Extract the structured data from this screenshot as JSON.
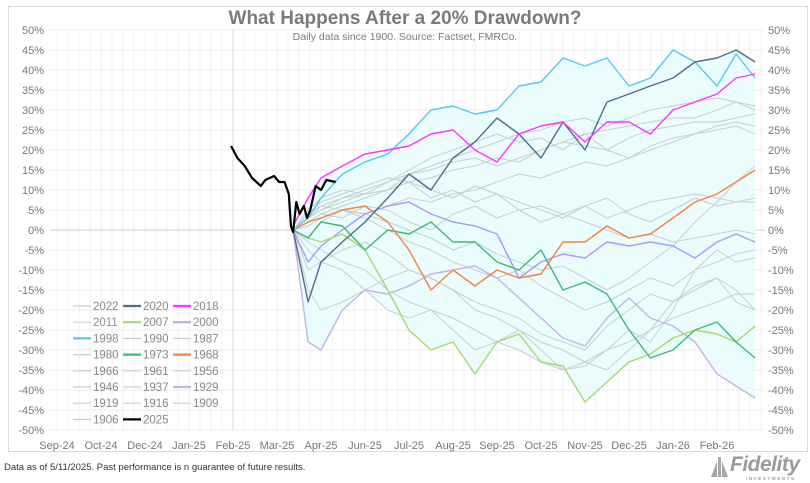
{
  "chart_data": {
    "type": "line",
    "title": "What Happens After a 20% Drawdown?",
    "subtitle": "Daily data since 1900.  Source: Factset, FMRCo.",
    "ylim": [
      -50,
      50
    ],
    "y_ticks": [
      50,
      45,
      40,
      35,
      30,
      25,
      20,
      15,
      10,
      5,
      0,
      -5,
      -10,
      -15,
      -20,
      -25,
      -30,
      -35,
      -40,
      -45,
      -50
    ],
    "y_tick_format": "percent",
    "grid": true,
    "legend_placement": "bottom-left",
    "band_color": "#ebfcfd",
    "x_ticks": [
      {
        "label": "Sep-24",
        "date": "2024-09-30"
      },
      {
        "label": "Oct-24",
        "date": "2024-10-31"
      },
      {
        "label": "Dec-24",
        "date": "2024-12-02"
      },
      {
        "label": "Jan-25",
        "date": "2025-01-03"
      },
      {
        "label": "Feb-25",
        "date": "2025-02-18"
      },
      {
        "label": "Mar-25",
        "date": "2025-03-20"
      },
      {
        "label": "Apr-25",
        "date": "2025-04-30"
      },
      {
        "label": "Jun-25",
        "date": "2025-06-02"
      },
      {
        "label": "Jul-25",
        "date": "2025-07-03"
      },
      {
        "label": "Aug-25",
        "date": "2025-08-04"
      },
      {
        "label": "Sep-25",
        "date": "2025-09-03"
      },
      {
        "label": "Oct-25",
        "date": "2025-10-03"
      },
      {
        "label": "Nov-25",
        "date": "2025-11-04"
      },
      {
        "label": "Dec-25",
        "date": "2025-12-04"
      },
      {
        "label": "Jan-26",
        "date": "2026-01-06"
      },
      {
        "label": "Feb-26",
        "date": "2026-02-05"
      }
    ],
    "x": [
      "2025-04-04",
      "2025-04-18",
      "2025-04-30",
      "2025-05-16",
      "2025-06-02",
      "2025-06-18",
      "2025-07-03",
      "2025-07-19",
      "2025-08-04",
      "2025-08-19",
      "2025-09-03",
      "2025-09-18",
      "2025-10-03",
      "2025-10-19",
      "2025-11-04",
      "2025-11-19",
      "2025-12-04",
      "2025-12-20",
      "2026-01-06",
      "2026-01-21",
      "2026-02-05",
      "2026-02-18",
      "2026-03-03"
    ],
    "series": [
      {
        "name": "2022",
        "color": "#c9cdd0",
        "values": [
          0,
          2,
          4,
          6,
          8,
          10,
          14,
          16,
          18,
          20,
          22,
          24,
          25,
          27,
          28,
          26,
          28,
          30,
          31,
          32,
          33,
          32,
          31
        ]
      },
      {
        "name": "2011",
        "color": "#c9cdd0",
        "values": [
          0,
          3,
          5,
          8,
          10,
          12,
          15,
          18,
          20,
          22,
          24,
          22,
          23,
          20,
          24,
          25,
          26,
          27,
          28,
          28,
          30,
          32,
          30
        ]
      },
      {
        "name": "1990",
        "color": "#c9cdd0",
        "values": [
          0,
          4,
          6,
          8,
          9,
          10,
          12,
          13,
          15,
          16,
          18,
          17,
          20,
          22,
          21,
          20,
          23,
          25,
          26,
          27,
          27,
          28,
          29
        ]
      },
      {
        "name": "1987",
        "color": "#c9cdd0",
        "values": [
          0,
          1,
          3,
          5,
          4,
          6,
          8,
          7,
          9,
          10,
          12,
          14,
          13,
          15,
          17,
          16,
          18,
          20,
          22,
          24,
          26,
          27,
          26
        ]
      },
      {
        "name": "1980",
        "color": "#c9cdd0",
        "values": [
          0,
          5,
          8,
          10,
          9,
          12,
          14,
          15,
          17,
          18,
          16,
          18,
          20,
          22,
          24,
          20,
          18,
          21,
          23,
          24,
          25,
          26,
          24
        ]
      },
      {
        "name": "1966",
        "color": "#c9cdd0",
        "values": [
          0,
          -3,
          -5,
          -8,
          -10,
          -15,
          -18,
          -20,
          -22,
          -25,
          -28,
          -30,
          -33,
          -35,
          -34,
          -30,
          -25,
          -28,
          -20,
          -10,
          -5,
          -8,
          -7
        ]
      },
      {
        "name": "1961",
        "color": "#c9cdd0",
        "values": [
          0,
          2,
          4,
          3,
          6,
          5,
          2,
          0,
          4,
          6,
          3,
          5,
          2,
          4,
          6,
          3,
          5,
          7,
          8,
          9,
          8,
          7,
          8
        ]
      },
      {
        "name": "1956",
        "color": "#c9cdd0",
        "values": [
          0,
          3,
          6,
          5,
          4,
          2,
          0,
          -2,
          -5,
          -3,
          -6,
          -8,
          -10,
          -9,
          -12,
          -15,
          -12,
          -8,
          -4,
          2,
          7,
          12,
          16
        ]
      },
      {
        "name": "1946",
        "color": "#c9cdd0",
        "values": [
          0,
          -5,
          -8,
          -10,
          -15,
          -20,
          -22,
          -20,
          -25,
          -30,
          -28,
          -25,
          -30,
          -35,
          -33,
          -30,
          -28,
          -25,
          -22,
          -20,
          -18,
          -16,
          -16
        ]
      },
      {
        "name": "1937",
        "color": "#c9cdd0",
        "values": [
          0,
          -15,
          -20,
          -18,
          -15,
          -12,
          -10,
          -12,
          -15,
          -20,
          -22,
          -25,
          -28,
          -30,
          -33,
          -35,
          -30,
          -25,
          -18,
          -15,
          -12,
          -15,
          -20
        ]
      },
      {
        "name": "1919",
        "color": "#c9cdd0",
        "values": [
          0,
          4,
          7,
          9,
          11,
          13,
          12,
          10,
          8,
          11,
          9,
          7,
          5,
          3,
          6,
          8,
          4,
          2,
          5,
          8,
          6,
          7,
          7
        ]
      },
      {
        "name": "1916",
        "color": "#c9cdd0",
        "values": [
          0,
          -2,
          2,
          5,
          3,
          0,
          -3,
          -5,
          -8,
          -10,
          -12,
          -10,
          -14,
          -17,
          -20,
          -18,
          -15,
          -12,
          -14,
          -10,
          -8,
          -6,
          -5
        ]
      },
      {
        "name": "1909",
        "color": "#c9cdd0",
        "values": [
          0,
          3,
          5,
          7,
          9,
          10,
          12,
          8,
          10,
          7,
          9,
          5,
          6,
          4,
          2,
          0,
          -2,
          -1,
          -3,
          -2,
          -1,
          0,
          -1
        ]
      },
      {
        "name": "1906",
        "color": "#c9cdd0",
        "values": [
          0,
          -10,
          -8,
          -5,
          -3,
          -6,
          -10,
          -12,
          -15,
          -18,
          -20,
          -22,
          -26,
          -28,
          -30,
          -24,
          -20,
          -16,
          -18,
          -14,
          -12,
          -18,
          -20
        ]
      },
      {
        "name": "1929",
        "color": "#c5b3e3",
        "values": [
          0,
          -28,
          -30,
          -20,
          -15,
          -16,
          -14,
          -11,
          -10,
          -9,
          -12,
          -17,
          -22,
          -27,
          -29,
          -22,
          -17,
          -22,
          -24,
          -28,
          -36,
          -39,
          -42
        ]
      },
      {
        "name": "2000",
        "color": "#a99af7",
        "values": [
          0,
          -8,
          -4,
          0,
          4,
          6,
          7,
          4,
          2,
          1,
          -1,
          -12,
          -8,
          -6,
          -7,
          -3,
          -4,
          -3,
          -4,
          -7,
          -3,
          -1,
          -3
        ]
      },
      {
        "name": "2007",
        "color": "#a6d96a",
        "values": [
          0,
          -2,
          -3,
          -1,
          -5,
          -15,
          -25,
          -30,
          -28,
          -36,
          -28,
          -26,
          -33,
          -34,
          -43,
          -38,
          -33,
          -31,
          -27,
          -25,
          -26,
          -28,
          -24
        ]
      },
      {
        "name": "1973",
        "color": "#3cb878",
        "values": [
          0,
          -2,
          2,
          1,
          -5,
          0,
          -1,
          2,
          -3,
          -3,
          -8,
          -10,
          -5,
          -15,
          -13,
          -16,
          -25,
          -32,
          -30,
          -25,
          -23,
          -28,
          -32
        ]
      },
      {
        "name": "1968",
        "color": "#f4843c",
        "values": [
          0,
          2,
          3,
          5,
          6,
          2,
          -5,
          -15,
          -10,
          -14,
          -10,
          -12,
          -11,
          -3,
          -3,
          1,
          -2,
          -1,
          3,
          7,
          9,
          12,
          15
        ]
      },
      {
        "name": "1998",
        "color": "#55c8f0",
        "values": [
          0,
          3,
          8,
          14,
          17,
          19,
          24,
          30,
          31,
          29,
          30,
          36,
          37,
          43,
          41,
          43,
          36,
          38,
          45,
          42,
          36,
          44,
          38
        ]
      },
      {
        "name": "2020",
        "color": "#4e6e8e",
        "values": [
          0,
          -18,
          -8,
          -3,
          2,
          8,
          14,
          10,
          18,
          22,
          28,
          24,
          18,
          27,
          20,
          32,
          34,
          36,
          38,
          42,
          43,
          45,
          42
        ]
      },
      {
        "name": "2018",
        "color": "#ff33ff",
        "values": [
          1,
          8,
          13,
          16,
          19,
          20,
          21,
          24,
          25,
          20,
          17,
          24,
          26,
          27,
          22,
          27,
          27,
          24,
          30,
          32,
          34,
          38,
          39
        ]
      }
    ],
    "current": {
      "name": "2025",
      "color": "#000000",
      "points": [
        [
          "2025-02-16",
          21
        ],
        [
          "2025-02-21",
          18
        ],
        [
          "2025-02-26",
          16
        ],
        [
          "2025-03-03",
          13
        ],
        [
          "2025-03-09",
          11
        ],
        [
          "2025-03-12",
          12.5
        ],
        [
          "2025-03-18",
          13.5
        ],
        [
          "2025-03-22",
          12
        ],
        [
          "2025-03-27",
          12
        ],
        [
          "2025-03-31",
          9
        ],
        [
          "2025-04-02",
          1
        ],
        [
          "2025-04-04",
          -0.5
        ],
        [
          "2025-04-07",
          7
        ],
        [
          "2025-04-10",
          4
        ],
        [
          "2025-04-14",
          6
        ],
        [
          "2025-04-17",
          3
        ],
        [
          "2025-04-20",
          5
        ],
        [
          "2025-04-25",
          11
        ],
        [
          "2025-04-30",
          10
        ],
        [
          "2025-05-04",
          12.5
        ],
        [
          "2025-05-11",
          12
        ]
      ]
    },
    "legend": [
      {
        "name": "2022",
        "color": "#c9cdd0"
      },
      {
        "name": "2020",
        "color": "#4e6e8e"
      },
      {
        "name": "2018",
        "color": "#ff33ff"
      },
      {
        "name": "2011",
        "color": "#d0d0d0"
      },
      {
        "name": "2007",
        "color": "#a6d96a"
      },
      {
        "name": "2000",
        "color": "#b9a6f7"
      },
      {
        "name": "1998",
        "color": "#55c8f0"
      },
      {
        "name": "1990",
        "color": "#c9cdd0"
      },
      {
        "name": "1987",
        "color": "#c9cdd0"
      },
      {
        "name": "1980",
        "color": "#c9cdd0"
      },
      {
        "name": "1973",
        "color": "#3cb878"
      },
      {
        "name": "1968",
        "color": "#f4843c"
      },
      {
        "name": "1966",
        "color": "#c9cdd0"
      },
      {
        "name": "1961",
        "color": "#c9cdd0"
      },
      {
        "name": "1956",
        "color": "#c9cdd0"
      },
      {
        "name": "1946",
        "color": "#c9cdd0"
      },
      {
        "name": "1937",
        "color": "#c9cdd0"
      },
      {
        "name": "1929",
        "color": "#c5b3e3"
      },
      {
        "name": "1919",
        "color": "#c9cdd0"
      },
      {
        "name": "1916",
        "color": "#c9cdd0"
      },
      {
        "name": "1909",
        "color": "#c9cdd0"
      },
      {
        "name": "1906",
        "color": "#c9cdd0"
      },
      {
        "name": "2025",
        "color": "#000000"
      }
    ]
  },
  "footer": {
    "disclaimer": "Data as of 5/11/2025. Past performance is n guarantee of future results.",
    "logo_text": "Fidelity",
    "logo_subtext": "INVESTMENTS"
  }
}
